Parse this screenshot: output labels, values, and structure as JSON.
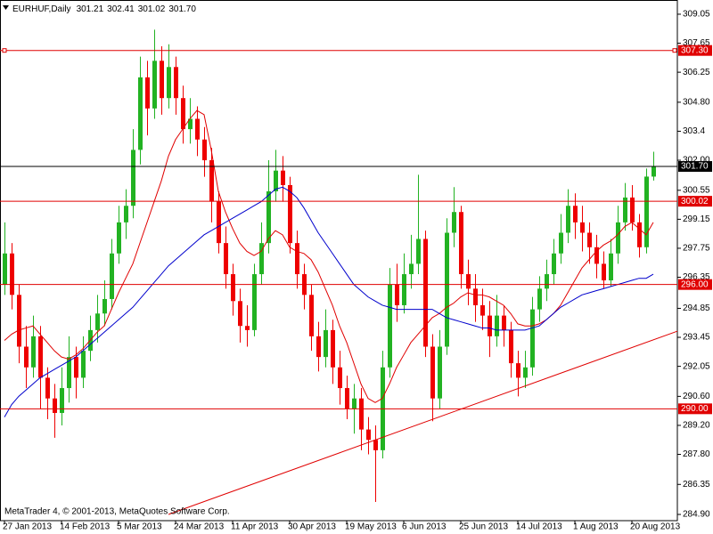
{
  "chart_data": {
    "type": "candlestick",
    "title": "EURHUF,Daily",
    "header_prices": [
      301.21,
      302.41,
      301.02,
      {
        "value": 301.7,
        "label": "301.70"
      }
    ],
    "footer": "MetaTrader 4, © 2001-2013, MetaQuotes Software Corp.",
    "up_color": "#22b222",
    "down_color": "#ee0000",
    "xlim": [
      -0.5,
      94.4
    ],
    "xticks": [
      {
        "value": 0,
        "label": "27 Jan 2013"
      },
      {
        "value": 8,
        "label": "14 Feb 2013"
      },
      {
        "value": 16,
        "label": "5 Mar 2013"
      },
      {
        "value": 24,
        "label": "24 Mar 2013"
      },
      {
        "value": 32,
        "label": "11 Apr 2013"
      },
      {
        "value": 40,
        "label": "30 Apr 2013"
      },
      {
        "value": 48,
        "label": "19 May 2013"
      },
      {
        "value": 56,
        "label": "6 Jun 2013"
      },
      {
        "value": 64,
        "label": "25 Jun 2013"
      },
      {
        "value": 72,
        "label": "14 Jul 2013"
      },
      {
        "value": 80,
        "label": "1 Aug 2013"
      },
      {
        "value": 88,
        "label": "20 Aug 2013"
      }
    ],
    "ylim": [
      284.6,
      309.65
    ],
    "yticks": [
      309.05,
      307.65,
      306.25,
      {
        "value": 304.8,
        "label": "304.80"
      },
      303.4,
      {
        "value": 302,
        "label": "302.00"
      },
      300.55,
      299.15,
      297.75,
      296.35,
      294.85,
      293.45,
      292.05,
      {
        "value": 290.6,
        "label": "290.60"
      },
      {
        "value": 289.2,
        "label": "289.20"
      },
      {
        "value": 287.8,
        "label": "287.80"
      },
      286.35,
      {
        "value": 284.9,
        "label": "284.90"
      }
    ],
    "open": [
      296.0,
      297.5,
      295.5,
      293.0,
      292.0,
      293.5,
      291.5,
      290.5,
      289.8,
      291.0,
      292.5,
      291.5,
      292.8,
      293.8,
      294.6,
      295.3,
      297.5,
      299.0,
      299.8,
      302.5,
      306.0,
      304.5,
      306.8,
      305.0,
      306.5,
      305.0,
      303.5,
      304.0,
      303.0,
      302.0,
      300.0,
      298.0,
      296.5,
      295.2,
      294.0,
      293.8,
      296.5,
      298.0,
      300.5,
      301.5,
      300.8,
      298.0,
      296.5,
      295.5,
      293.5,
      292.5,
      293.8,
      292.0,
      291.0,
      290.0,
      290.5,
      289.0,
      288.5,
      288.0,
      292.0,
      296.0,
      295.0,
      296.5,
      297.0,
      298.2,
      293.0,
      290.5,
      293.0,
      298.5,
      299.5,
      296.5,
      295.8,
      295.0,
      294.5,
      293.5,
      294.5,
      293.8,
      292.2,
      291.5,
      292.0,
      294.8,
      295.8,
      296.5,
      297.5,
      298.5,
      299.8,
      299.0,
      298.5,
      297.8,
      297.0,
      296.2,
      297.5,
      299.0,
      300.2,
      299.0,
      297.8,
      301.21
    ],
    "high": [
      299.0,
      298.0,
      296.0,
      294.0,
      294.5,
      294.0,
      292.0,
      291.2,
      292.0,
      293.5,
      293.0,
      293.5,
      294.5,
      295.5,
      296.2,
      298.2,
      299.8,
      300.6,
      303.5,
      307.0,
      306.8,
      308.3,
      307.5,
      307.6,
      307.0,
      305.6,
      305.0,
      304.6,
      303.6,
      302.6,
      300.5,
      298.8,
      297.0,
      295.8,
      295.0,
      297.0,
      299.0,
      302.0,
      302.5,
      302.2,
      301.2,
      298.6,
      297.0,
      296.0,
      294.2,
      294.8,
      294.3,
      292.8,
      291.6,
      291.2,
      291.0,
      289.6,
      289.2,
      292.8,
      296.8,
      297.0,
      297.5,
      298.4,
      301.3,
      298.6,
      293.6,
      293.8,
      299.2,
      300.7,
      299.8,
      297.2,
      296.5,
      295.8,
      295.2,
      295.5,
      295.0,
      294.2,
      292.8,
      292.8,
      295.4,
      296.4,
      297.2,
      298.2,
      299.4,
      300.6,
      300.4,
      299.8,
      299.0,
      298.4,
      297.6,
      298.2,
      299.8,
      300.9,
      300.8,
      299.4,
      301.6,
      302.41
    ],
    "low": [
      295.5,
      294.8,
      292.2,
      291.0,
      291.5,
      290.0,
      289.5,
      288.6,
      289.2,
      290.3,
      290.5,
      291.0,
      292.3,
      293.2,
      294.0,
      294.8,
      297.0,
      298.2,
      299.2,
      301.8,
      303.2,
      304.0,
      304.2,
      304.5,
      304.2,
      302.8,
      302.8,
      302.2,
      301.2,
      299.0,
      297.5,
      295.8,
      294.5,
      293.2,
      293.0,
      293.5,
      296.0,
      297.5,
      300.0,
      300.0,
      297.5,
      295.8,
      294.8,
      292.8,
      291.8,
      292.0,
      291.2,
      290.2,
      289.5,
      288.8,
      288.0,
      287.8,
      285.5,
      287.6,
      291.5,
      294.2,
      294.6,
      295.8,
      296.5,
      292.5,
      289.4,
      290.0,
      292.6,
      297.8,
      295.8,
      295.0,
      294.2,
      293.8,
      292.5,
      293.0,
      293.0,
      291.5,
      290.6,
      291.0,
      291.6,
      294.2,
      295.2,
      296.0,
      297.0,
      298.0,
      298.2,
      297.6,
      297.0,
      296.3,
      295.8,
      295.9,
      297.0,
      298.6,
      298.6,
      297.3,
      297.5,
      301.02
    ],
    "close": [
      297.5,
      295.5,
      293.0,
      292.0,
      293.5,
      291.5,
      290.5,
      289.8,
      291.0,
      292.5,
      291.5,
      292.8,
      293.8,
      294.6,
      295.3,
      297.5,
      299.0,
      299.8,
      302.5,
      306.0,
      304.5,
      306.8,
      305.0,
      306.5,
      305.0,
      303.5,
      304.0,
      303.0,
      302.0,
      300.0,
      298.0,
      296.5,
      295.2,
      294.0,
      293.8,
      296.5,
      298.0,
      300.5,
      301.5,
      300.8,
      298.0,
      296.5,
      295.5,
      293.5,
      292.5,
      293.8,
      292.0,
      291.0,
      290.0,
      290.5,
      289.0,
      288.5,
      288.0,
      292.0,
      296.0,
      295.0,
      296.5,
      297.0,
      298.2,
      293.0,
      290.5,
      293.0,
      298.5,
      299.5,
      296.5,
      295.8,
      295.0,
      294.5,
      293.5,
      294.5,
      293.8,
      292.2,
      291.5,
      292.0,
      294.8,
      295.8,
      296.5,
      297.5,
      298.5,
      299.8,
      299.0,
      298.5,
      297.8,
      297.0,
      296.2,
      297.5,
      299.0,
      300.2,
      299.0,
      297.8,
      301.21,
      301.7
    ],
    "series": [
      {
        "color": "#e00000",
        "values": [
          293.3,
          293.6,
          293.8,
          293.9,
          294.0,
          293.6,
          293.2,
          292.8,
          292.5,
          292.4,
          292.6,
          292.9,
          293.3,
          293.7,
          294.0,
          294.8,
          295.6,
          296.3,
          297.0,
          298.0,
          299.0,
          300.0,
          301.0,
          302.2,
          303.0,
          303.5,
          304.0,
          304.4,
          304.2,
          302.5,
          300.5,
          299.5,
          298.7,
          298.0,
          297.6,
          297.4,
          297.6,
          298.2,
          298.6,
          298.4,
          297.8,
          297.6,
          297.5,
          297.2,
          296.6,
          295.8,
          295.0,
          294.0,
          293.2,
          292.2,
          291.2,
          290.5,
          290.3,
          290.5,
          291.2,
          292.0,
          292.6,
          293.2,
          293.6,
          294.0,
          294.4,
          294.6,
          294.9,
          295.1,
          295.4,
          295.6,
          295.5,
          295.5,
          295.4,
          295.2,
          295.0,
          294.6,
          294.1,
          294.0,
          294.0,
          294.1,
          294.3,
          294.6,
          295.0,
          295.6,
          296.2,
          296.8,
          297.2,
          297.6,
          297.9,
          298.1,
          298.4,
          298.8,
          299.0,
          298.7,
          298.4,
          299.0
        ]
      },
      {
        "color": "#0000cc",
        "values": [
          289.6,
          290.2,
          290.6,
          290.9,
          291.2,
          291.5,
          291.7,
          291.9,
          292.1,
          292.3,
          292.5,
          292.8,
          293.1,
          293.4,
          293.7,
          294.0,
          294.3,
          294.6,
          294.9,
          295.3,
          295.7,
          296.1,
          296.5,
          296.9,
          297.2,
          297.5,
          297.8,
          298.1,
          298.4,
          298.6,
          298.8,
          299.0,
          299.2,
          299.4,
          299.6,
          299.8,
          300.0,
          300.3,
          300.6,
          300.7,
          300.5,
          300.2,
          299.7,
          299.1,
          298.5,
          298.0,
          297.5,
          297.0,
          296.5,
          296.0,
          295.7,
          295.4,
          295.2,
          295.0,
          294.9,
          294.8,
          294.8,
          294.8,
          294.8,
          294.8,
          294.8,
          294.6,
          294.4,
          294.3,
          294.2,
          294.1,
          294.0,
          293.9,
          293.9,
          293.8,
          293.8,
          293.8,
          293.8,
          293.8,
          293.9,
          294.0,
          294.3,
          294.6,
          294.9,
          295.1,
          295.3,
          295.5,
          295.6,
          295.7,
          295.8,
          295.9,
          296.0,
          296.1,
          296.2,
          296.3,
          296.3,
          296.5
        ]
      }
    ],
    "levels": [
      {
        "value": 307.3,
        "label": "307.30"
      },
      {
        "value": 300.02,
        "label": "300.02"
      },
      {
        "value": 296,
        "label": "296.00"
      },
      {
        "value": 290,
        "label": "290.00"
      }
    ],
    "level_color": "#e00000",
    "price_line": {
      "value": 301.7,
      "label": "301.70"
    },
    "trendline": {
      "x": [
        23,
        94.4
      ],
      "y": [
        284.9,
        293.75
      ],
      "color": "#e00000"
    }
  }
}
